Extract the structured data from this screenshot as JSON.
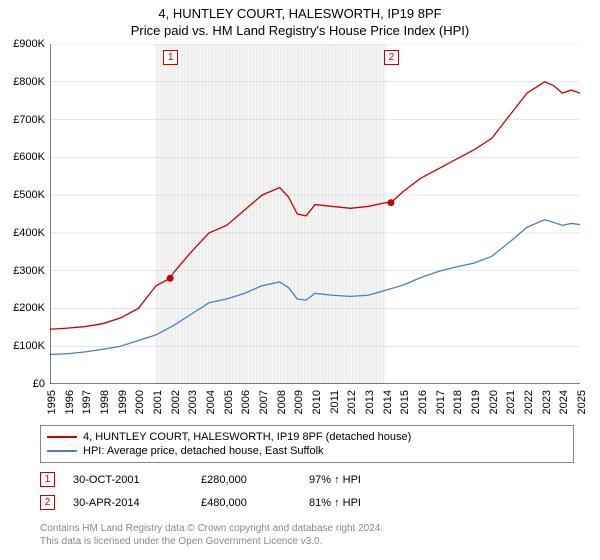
{
  "title": "4, HUNTLEY COURT, HALESWORTH, IP19 8PF",
  "subtitle": "Price paid vs. HM Land Registry's House Price Index (HPI)",
  "chart": {
    "type": "line",
    "x_years": [
      1995,
      1996,
      1997,
      1998,
      1999,
      2000,
      2001,
      2002,
      2003,
      2004,
      2005,
      2006,
      2007,
      2008,
      2009,
      2010,
      2011,
      2012,
      2013,
      2014,
      2015,
      2016,
      2017,
      2018,
      2019,
      2020,
      2021,
      2022,
      2023,
      2024,
      2025
    ],
    "xlim": [
      1995,
      2025
    ],
    "ylim": [
      0,
      900
    ],
    "ytick_step": 100,
    "ytick_labels": [
      "£0",
      "£100K",
      "£200K",
      "£300K",
      "£400K",
      "£500K",
      "£600K",
      "£700K",
      "£800K",
      "£900K"
    ],
    "band_start": 2001,
    "band_end": 2014,
    "series": [
      {
        "name": "price_paid",
        "color": "#cc0000",
        "label": "4, HUNTLEY COURT, HALESWORTH, IP19 8PF (detached house)",
        "points": [
          [
            1995,
            145
          ],
          [
            1996,
            148
          ],
          [
            1997,
            152
          ],
          [
            1998,
            160
          ],
          [
            1999,
            175
          ],
          [
            2000,
            200
          ],
          [
            2000.5,
            230
          ],
          [
            2001,
            260
          ],
          [
            2001.8,
            280
          ],
          [
            2002,
            295
          ],
          [
            2003,
            350
          ],
          [
            2004,
            400
          ],
          [
            2005,
            420
          ],
          [
            2006,
            460
          ],
          [
            2007,
            500
          ],
          [
            2008,
            520
          ],
          [
            2008.5,
            495
          ],
          [
            2009,
            450
          ],
          [
            2009.5,
            445
          ],
          [
            2010,
            475
          ],
          [
            2011,
            470
          ],
          [
            2012,
            465
          ],
          [
            2013,
            470
          ],
          [
            2014,
            480
          ],
          [
            2014.3,
            480
          ],
          [
            2015,
            510
          ],
          [
            2016,
            545
          ],
          [
            2017,
            570
          ],
          [
            2018,
            595
          ],
          [
            2019,
            620
          ],
          [
            2020,
            650
          ],
          [
            2021,
            710
          ],
          [
            2022,
            770
          ],
          [
            2023,
            800
          ],
          [
            2023.5,
            790
          ],
          [
            2024,
            770
          ],
          [
            2024.5,
            778
          ],
          [
            2025,
            770
          ]
        ],
        "sale_markers": [
          {
            "year": 2001.8,
            "value": 280
          },
          {
            "year": 2014.3,
            "value": 480
          }
        ]
      },
      {
        "name": "hpi",
        "color": "#4a7fc4",
        "label": "HPI: Average price, detached house, East Suffolk",
        "points": [
          [
            1995,
            78
          ],
          [
            1996,
            80
          ],
          [
            1997,
            85
          ],
          [
            1998,
            92
          ],
          [
            1999,
            100
          ],
          [
            2000,
            115
          ],
          [
            2001,
            130
          ],
          [
            2002,
            155
          ],
          [
            2003,
            185
          ],
          [
            2004,
            215
          ],
          [
            2005,
            225
          ],
          [
            2006,
            240
          ],
          [
            2007,
            260
          ],
          [
            2008,
            270
          ],
          [
            2008.5,
            255
          ],
          [
            2009,
            225
          ],
          [
            2009.5,
            222
          ],
          [
            2010,
            240
          ],
          [
            2011,
            235
          ],
          [
            2012,
            232
          ],
          [
            2013,
            235
          ],
          [
            2014,
            248
          ],
          [
            2015,
            262
          ],
          [
            2016,
            282
          ],
          [
            2017,
            298
          ],
          [
            2018,
            310
          ],
          [
            2019,
            320
          ],
          [
            2020,
            338
          ],
          [
            2021,
            375
          ],
          [
            2022,
            415
          ],
          [
            2023,
            435
          ],
          [
            2023.5,
            428
          ],
          [
            2024,
            420
          ],
          [
            2024.5,
            425
          ],
          [
            2025,
            422
          ]
        ]
      }
    ],
    "top_markers": [
      {
        "label": "1",
        "year": 2001.8
      },
      {
        "label": "2",
        "year": 2014.3
      }
    ],
    "background_color": "#ffffff",
    "grid_color": "#d0d0d0",
    "band_color": "#e6e6e6",
    "title_fontsize": 13,
    "label_fontsize": 11
  },
  "legend": {
    "rows": [
      {
        "color": "#cc0000",
        "label": "4, HUNTLEY COURT, HALESWORTH, IP19 8PF (detached house)"
      },
      {
        "color": "#4a7fc4",
        "label": "HPI: Average price, detached house, East Suffolk"
      }
    ]
  },
  "sales": [
    {
      "n": "1",
      "date": "30-OCT-2001",
      "price": "£280,000",
      "pct": "97% ↑ HPI"
    },
    {
      "n": "2",
      "date": "30-APR-2014",
      "price": "£480,000",
      "pct": "81% ↑ HPI"
    }
  ],
  "footer": {
    "line1": "Contains HM Land Registry data © Crown copyright and database right 2024.",
    "line2": "This data is licensed under the Open Government Licence v3.0."
  }
}
